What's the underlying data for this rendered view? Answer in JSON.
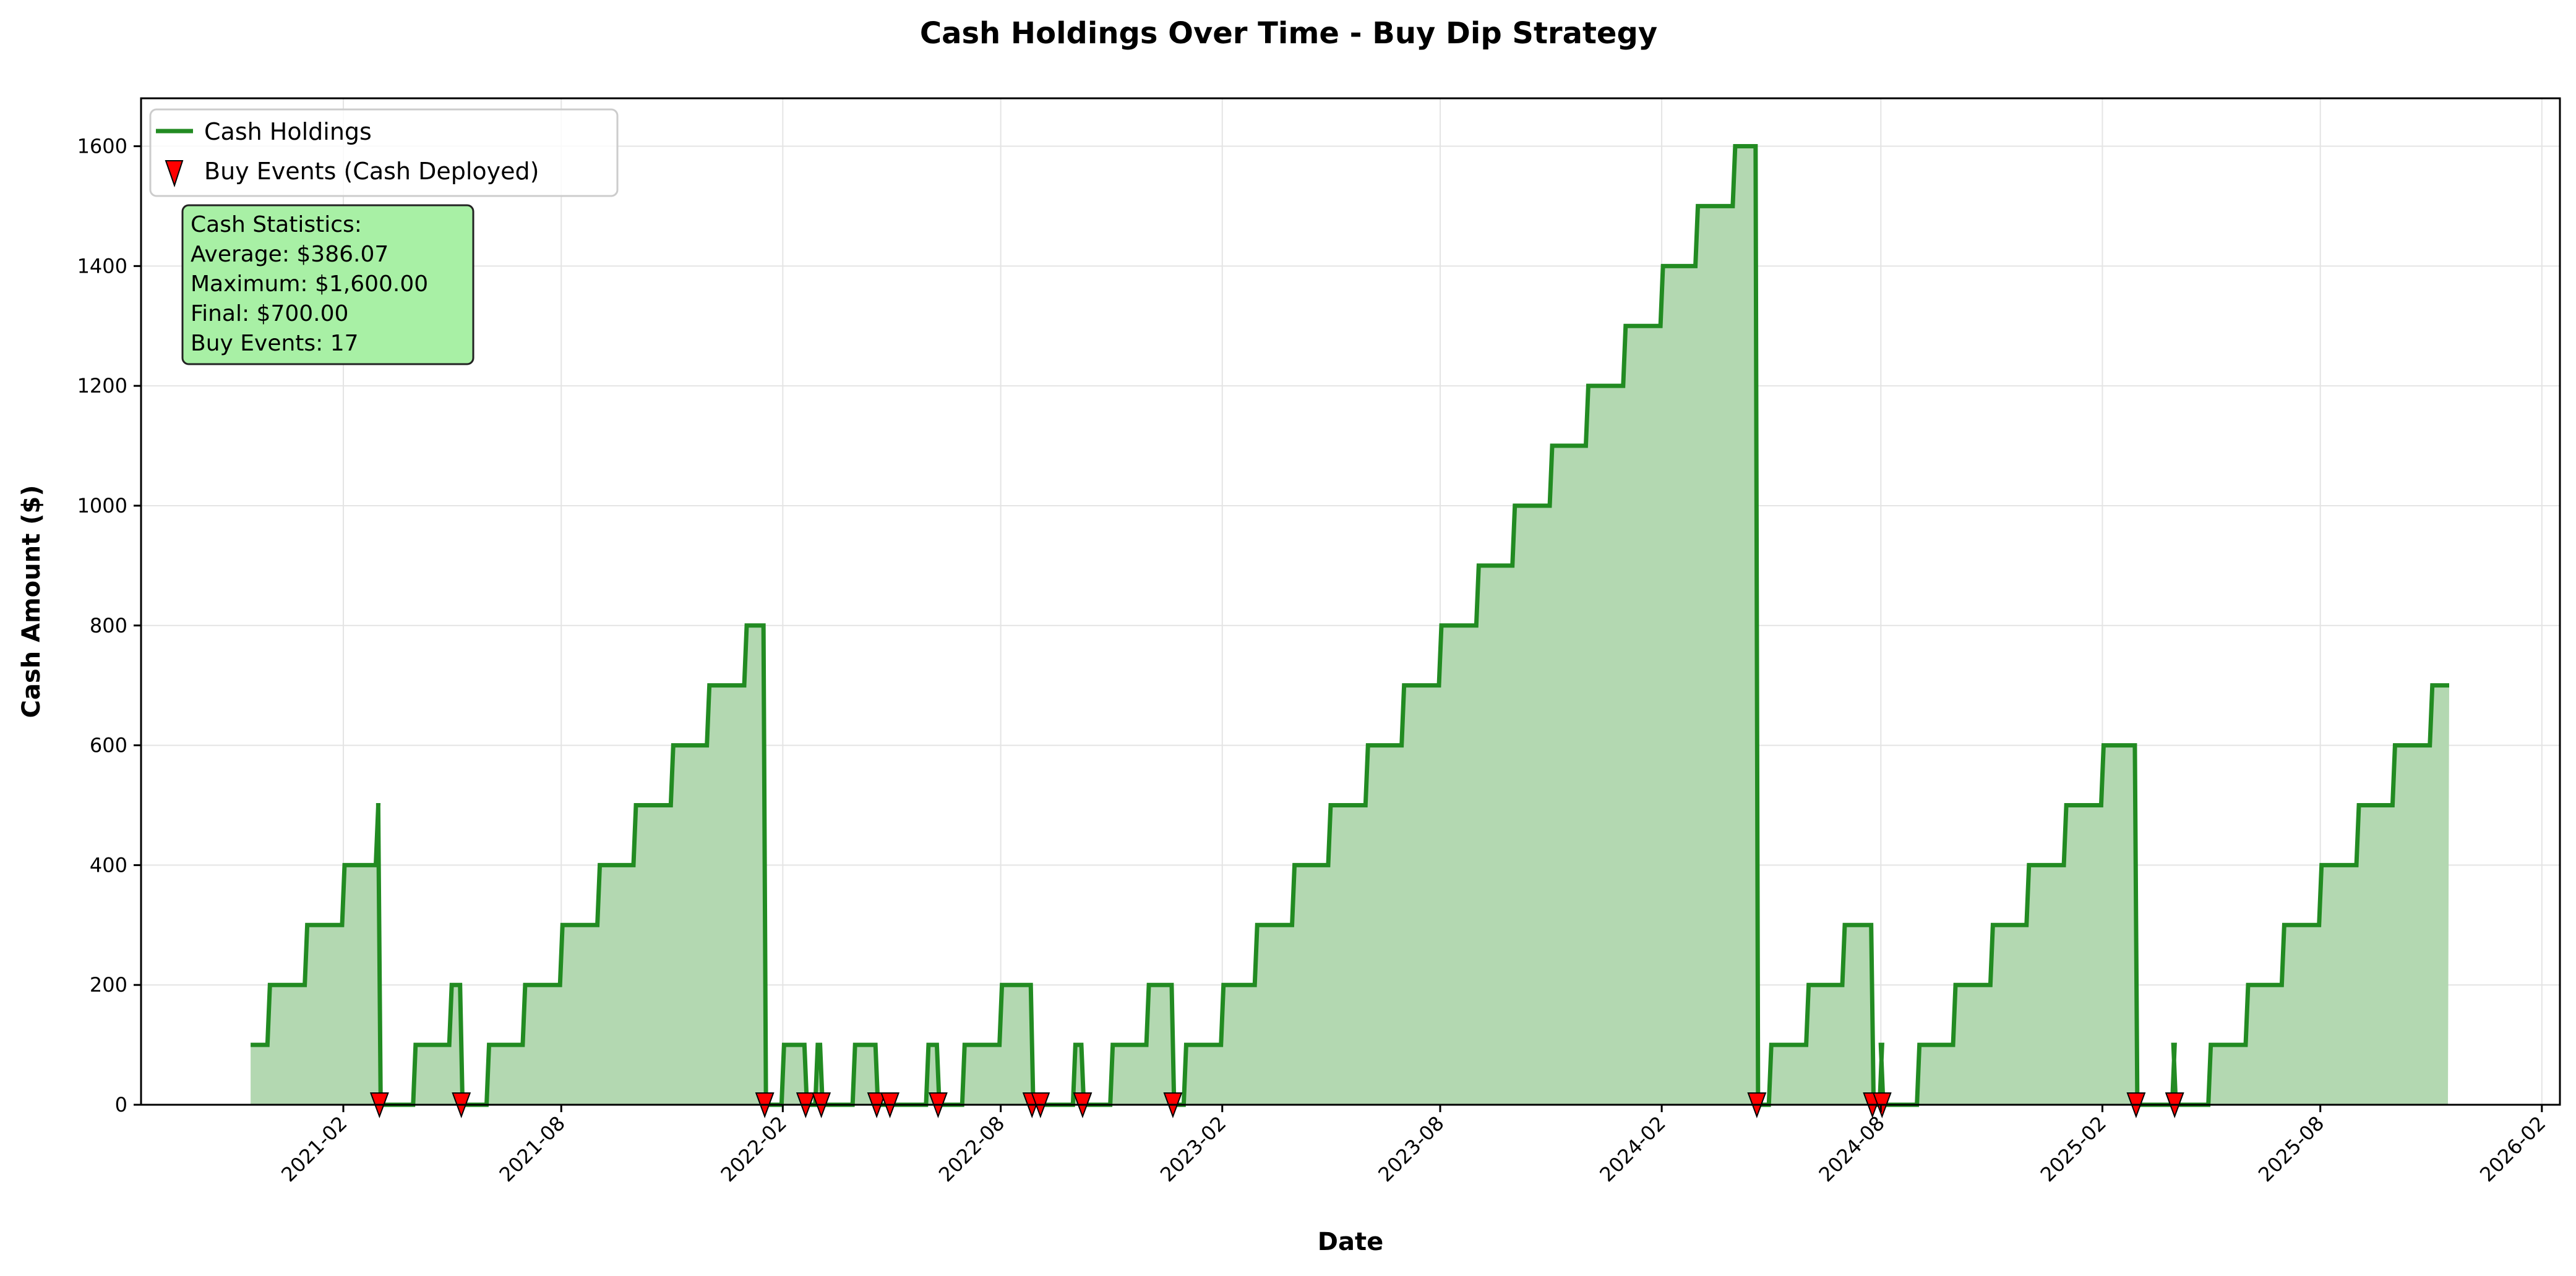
{
  "chart_data": {
    "type": "line",
    "title": "Cash Holdings Over Time - Buy Dip Strategy",
    "xlabel": "Date",
    "ylabel": "Cash Amount ($)",
    "xlim": [
      "2020-08-17",
      "2026-02-16"
    ],
    "ylim": [
      0,
      1680
    ],
    "grid": true,
    "legend_placement": "upper-left",
    "x_ticks": [
      "2021-02",
      "2021-08",
      "2022-02",
      "2022-08",
      "2023-02",
      "2023-08",
      "2024-02",
      "2024-08",
      "2025-02",
      "2025-08",
      "2026-02"
    ],
    "y_ticks": [
      0,
      200,
      400,
      600,
      800,
      1000,
      1200,
      1400,
      1600
    ],
    "colors": {
      "line": "#228b22",
      "fill": "#b3d8b1",
      "marker": "#ff0000",
      "stats_box": "#a8f0a5"
    },
    "series": [
      {
        "name": "Cash Holdings",
        "style": "step",
        "points": [
          [
            "2020-11-16",
            100
          ],
          [
            "2020-12-01",
            200
          ],
          [
            "2021-01-01",
            300
          ],
          [
            "2021-02-01",
            400
          ],
          [
            "2021-03-01",
            500
          ],
          [
            "2021-03-03",
            0
          ],
          [
            "2021-04-01",
            100
          ],
          [
            "2021-05-01",
            200
          ],
          [
            "2021-05-10",
            0
          ],
          [
            "2021-06-01",
            100
          ],
          [
            "2021-07-01",
            200
          ],
          [
            "2021-08-01",
            300
          ],
          [
            "2021-09-01",
            400
          ],
          [
            "2021-10-01",
            500
          ],
          [
            "2021-11-01",
            600
          ],
          [
            "2021-12-01",
            700
          ],
          [
            "2022-01-01",
            800
          ],
          [
            "2022-01-17",
            0
          ],
          [
            "2022-02-01",
            100
          ],
          [
            "2022-02-20",
            0
          ],
          [
            "2022-03-01",
            100
          ],
          [
            "2022-03-05",
            0
          ],
          [
            "2022-04-01",
            100
          ],
          [
            "2022-04-20",
            0
          ],
          [
            "2022-06-01",
            100
          ],
          [
            "2022-06-10",
            0
          ],
          [
            "2022-07-01",
            100
          ],
          [
            "2022-08-01",
            200
          ],
          [
            "2022-08-27",
            0
          ],
          [
            "2022-10-01",
            100
          ],
          [
            "2022-10-08",
            0
          ],
          [
            "2022-11-01",
            100
          ],
          [
            "2022-12-01",
            200
          ],
          [
            "2022-12-22",
            0
          ],
          [
            "2023-01-01",
            100
          ],
          [
            "2023-02-01",
            200
          ],
          [
            "2023-03-01",
            300
          ],
          [
            "2023-04-01",
            400
          ],
          [
            "2023-05-01",
            500
          ],
          [
            "2023-06-01",
            600
          ],
          [
            "2023-07-01",
            700
          ],
          [
            "2023-08-01",
            800
          ],
          [
            "2023-09-01",
            900
          ],
          [
            "2023-10-01",
            1000
          ],
          [
            "2023-11-01",
            1100
          ],
          [
            "2023-12-01",
            1200
          ],
          [
            "2024-01-01",
            1300
          ],
          [
            "2024-02-01",
            1400
          ],
          [
            "2024-03-01",
            1500
          ],
          [
            "2024-04-01",
            1600
          ],
          [
            "2024-04-20",
            0
          ],
          [
            "2024-05-01",
            100
          ],
          [
            "2024-06-01",
            200
          ],
          [
            "2024-07-01",
            300
          ],
          [
            "2024-07-25",
            0
          ],
          [
            "2024-08-01",
            100
          ],
          [
            "2024-08-02",
            0
          ],
          [
            "2024-09-01",
            100
          ],
          [
            "2024-10-01",
            200
          ],
          [
            "2024-11-01",
            300
          ],
          [
            "2024-12-01",
            400
          ],
          [
            "2025-01-01",
            500
          ],
          [
            "2025-02-01",
            600
          ],
          [
            "2025-03-01",
            0
          ],
          [
            "2025-04-01",
            100
          ],
          [
            "2025-04-02",
            0
          ],
          [
            "2025-05-01",
            100
          ],
          [
            "2025-06-01",
            200
          ],
          [
            "2025-07-01",
            300
          ],
          [
            "2025-08-01",
            400
          ],
          [
            "2025-09-01",
            500
          ],
          [
            "2025-10-01",
            600
          ],
          [
            "2025-11-01",
            700
          ],
          [
            "2025-11-15",
            700
          ]
        ]
      },
      {
        "name": "Buy Events (Cash Deployed)",
        "style": "marker",
        "dates": [
          "2021-03-03",
          "2021-05-10",
          "2022-01-17",
          "2022-02-20",
          "2022-03-05",
          "2022-04-20",
          "2022-05-01",
          "2022-06-10",
          "2022-08-27",
          "2022-09-03",
          "2022-10-08",
          "2022-12-22",
          "2024-04-20",
          "2024-07-25",
          "2024-08-02",
          "2025-03-01",
          "2025-04-02"
        ],
        "value": 0
      }
    ],
    "stats_box": [
      "Cash Statistics:",
      "Average: $386.07",
      "Maximum: $1,600.00",
      "Final: $700.00",
      "Buy Events: 17"
    ]
  }
}
